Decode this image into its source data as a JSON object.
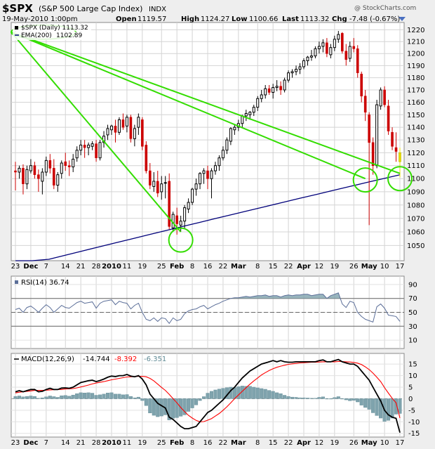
{
  "header": {
    "symbol": "$SPX",
    "name": "(S&P 500 Large Cap Index)",
    "exchange": "INDX",
    "date": "19-May-2010 1:00pm",
    "open_label": "Open",
    "open": "1119.57",
    "high_label": "High",
    "high": "1124.27",
    "low_label": "Low",
    "low": "1100.66",
    "last_label": "Last",
    "last": "1113.32",
    "chg_label": "Chg",
    "chg": "-7.48 (-0.67%)",
    "watermark": "@ StockCharts.com"
  },
  "colors": {
    "up": "#000000",
    "down": "#cc0000",
    "today": "#e8e000",
    "ema": "#00007a",
    "annotation": "#33dd00",
    "rsi": "#5c6f99",
    "macd": "#000000",
    "signal": "#ff0000",
    "histogram": "#7fa3ad",
    "plot_bg": "#ffffff",
    "page_bg": "#eeeeee"
  },
  "chart_data": [
    {
      "type": "candlestick",
      "title": "$SPX (Daily) 1113.32",
      "legend": [
        {
          "name": "EMA(200)",
          "value": "1102.89"
        }
      ],
      "x_labels": [
        "23",
        "Dec",
        "7",
        "14",
        "21",
        "28",
        "2010",
        "11",
        "19",
        "25",
        "Feb",
        "8",
        "16",
        "22",
        "Mar",
        "8",
        "15",
        "22",
        "Apr",
        "12",
        "19",
        "26",
        "May",
        "10",
        "17"
      ],
      "ylim": [
        1040,
        1225
      ],
      "y_ticks": [
        1050,
        1060,
        1070,
        1080,
        1090,
        1100,
        1110,
        1120,
        1130,
        1140,
        1150,
        1160,
        1170,
        1180,
        1190,
        1200,
        1210,
        1220
      ],
      "y_scale": "log",
      "candles": [
        [
          1106,
          1113,
          1091,
          1105
        ],
        [
          1105,
          1110,
          1100,
          1108
        ],
        [
          1108,
          1111,
          1088,
          1096
        ],
        [
          1096,
          1110,
          1092,
          1107
        ],
        [
          1106,
          1115,
          1104,
          1110
        ],
        [
          1110,
          1113,
          1100,
          1103
        ],
        [
          1103,
          1107,
          1090,
          1100
        ],
        [
          1098,
          1108,
          1088,
          1105
        ],
        [
          1105,
          1117,
          1102,
          1114
        ],
        [
          1114,
          1119,
          1104,
          1108
        ],
        [
          1108,
          1115,
          1092,
          1095
        ],
        [
          1095,
          1105,
          1090,
          1103
        ],
        [
          1104,
          1114,
          1100,
          1112
        ],
        [
          1113,
          1120,
          1106,
          1110
        ],
        [
          1110,
          1114,
          1102,
          1109
        ],
        [
          1109,
          1119,
          1105,
          1115
        ],
        [
          1116,
          1125,
          1113,
          1122
        ],
        [
          1122,
          1130,
          1118,
          1126
        ],
        [
          1126,
          1130,
          1116,
          1124
        ],
        [
          1124,
          1128,
          1118,
          1126
        ],
        [
          1125,
          1129,
          1122,
          1127
        ],
        [
          1127,
          1130,
          1113,
          1116
        ],
        [
          1116,
          1130,
          1114,
          1128
        ],
        [
          1128,
          1137,
          1124,
          1133
        ],
        [
          1134,
          1142,
          1130,
          1139
        ],
        [
          1138,
          1142,
          1134,
          1141
        ],
        [
          1141,
          1146,
          1128,
          1136
        ],
        [
          1136,
          1148,
          1134,
          1146
        ],
        [
          1146,
          1151,
          1138,
          1140
        ],
        [
          1141,
          1150,
          1136,
          1148
        ],
        [
          1148,
          1150,
          1128,
          1131
        ],
        [
          1131,
          1142,
          1125,
          1139
        ],
        [
          1140,
          1151,
          1134,
          1148
        ],
        [
          1146,
          1148,
          1122,
          1125
        ],
        [
          1126,
          1129,
          1104,
          1106
        ],
        [
          1106,
          1112,
          1092,
          1095
        ],
        [
          1094,
          1105,
          1090,
          1098
        ],
        [
          1098,
          1106,
          1086,
          1089
        ],
        [
          1090,
          1102,
          1084,
          1096
        ],
        [
          1097,
          1102,
          1085,
          1097
        ],
        [
          1098,
          1104,
          1062,
          1064
        ],
        [
          1063,
          1075,
          1060,
          1073
        ],
        [
          1072,
          1078,
          1058,
          1066
        ],
        [
          1065,
          1072,
          1060,
          1068
        ],
        [
          1068,
          1080,
          1062,
          1078
        ],
        [
          1077,
          1085,
          1074,
          1082
        ],
        [
          1082,
          1093,
          1080,
          1092
        ],
        [
          1092,
          1100,
          1087,
          1096
        ],
        [
          1096,
          1105,
          1092,
          1104
        ],
        [
          1104,
          1108,
          1096,
          1106
        ],
        [
          1106,
          1110,
          1092,
          1100
        ],
        [
          1100,
          1108,
          1085,
          1106
        ],
        [
          1106,
          1113,
          1103,
          1110
        ],
        [
          1110,
          1118,
          1106,
          1116
        ],
        [
          1116,
          1125,
          1114,
          1122
        ],
        [
          1122,
          1132,
          1119,
          1130
        ],
        [
          1129,
          1140,
          1126,
          1139
        ],
        [
          1138,
          1142,
          1134,
          1140
        ],
        [
          1140,
          1146,
          1137,
          1143
        ],
        [
          1143,
          1150,
          1140,
          1149
        ],
        [
          1149,
          1154,
          1145,
          1151
        ],
        [
          1150,
          1153,
          1146,
          1152
        ],
        [
          1152,
          1158,
          1149,
          1156
        ],
        [
          1156,
          1165,
          1153,
          1163
        ],
        [
          1163,
          1170,
          1160,
          1166
        ],
        [
          1166,
          1174,
          1163,
          1171
        ],
        [
          1171,
          1174,
          1166,
          1168
        ],
        [
          1168,
          1175,
          1163,
          1172
        ],
        [
          1172,
          1178,
          1169,
          1173
        ],
        [
          1173,
          1177,
          1166,
          1170
        ],
        [
          1170,
          1180,
          1168,
          1178
        ],
        [
          1178,
          1186,
          1176,
          1184
        ],
        [
          1184,
          1187,
          1180,
          1185
        ],
        [
          1185,
          1190,
          1182,
          1187
        ],
        [
          1187,
          1192,
          1183,
          1189
        ],
        [
          1189,
          1196,
          1187,
          1194
        ],
        [
          1194,
          1198,
          1190,
          1197
        ],
        [
          1197,
          1203,
          1194,
          1198
        ],
        [
          1198,
          1206,
          1196,
          1204
        ],
        [
          1204,
          1210,
          1200,
          1206
        ],
        [
          1206,
          1212,
          1201,
          1209
        ],
        [
          1209,
          1213,
          1197,
          1200
        ],
        [
          1199,
          1208,
          1196,
          1205
        ],
        [
          1205,
          1215,
          1202,
          1212
        ],
        [
          1212,
          1219,
          1209,
          1216
        ],
        [
          1217,
          1218,
          1200,
          1202
        ],
        [
          1202,
          1208,
          1190,
          1195
        ],
        [
          1196,
          1210,
          1193,
          1206
        ],
        [
          1206,
          1213,
          1201,
          1204
        ],
        [
          1204,
          1207,
          1180,
          1184
        ],
        [
          1183,
          1185,
          1160,
          1165
        ],
        [
          1165,
          1170,
          1145,
          1152
        ],
        [
          1150,
          1152,
          1065,
          1128
        ],
        [
          1128,
          1132,
          1103,
          1110
        ],
        [
          1110,
          1162,
          1108,
          1158
        ],
        [
          1157,
          1172,
          1154,
          1170
        ],
        [
          1170,
          1173,
          1156,
          1158
        ],
        [
          1157,
          1162,
          1134,
          1137
        ],
        [
          1136,
          1140,
          1122,
          1125
        ],
        [
          1124,
          1136,
          1113,
          1121
        ],
        [
          1120,
          1124,
          1101,
          1113
        ]
      ],
      "ema200": [
        1034,
        1037,
        1040,
        1043,
        1046,
        1049,
        1052,
        1055,
        1058,
        1061,
        1064,
        1067,
        1070,
        1073,
        1076,
        1079,
        1082,
        1085,
        1088,
        1091,
        1094,
        1097,
        1100,
        1103
      ]
    },
    {
      "type": "line",
      "title": "RSI(14) 36.74",
      "ylim": [
        0,
        100
      ],
      "y_ticks": [
        10,
        30,
        50,
        70,
        90
      ],
      "reference_lines": [
        70,
        50,
        30
      ],
      "values": [
        54,
        56,
        50,
        57,
        59,
        55,
        50,
        56,
        61,
        57,
        50,
        55,
        60,
        57,
        56,
        60,
        64,
        66,
        63,
        64,
        65,
        56,
        63,
        66,
        67,
        68,
        61,
        66,
        64,
        63,
        55,
        60,
        63,
        50,
        40,
        38,
        42,
        37,
        42,
        41,
        34,
        42,
        38,
        40,
        48,
        52,
        54,
        55,
        58,
        60,
        55,
        58,
        61,
        63,
        66,
        68,
        70,
        71,
        71,
        72,
        73,
        72,
        73,
        74,
        74,
        75,
        73,
        74,
        74,
        72,
        74,
        75,
        74,
        75,
        75,
        76,
        76,
        74,
        75,
        76,
        76,
        70,
        74,
        76,
        78,
        62,
        57,
        66,
        64,
        50,
        44,
        40,
        38,
        36,
        58,
        62,
        56,
        46,
        45,
        44,
        37
      ]
    },
    {
      "type": "line",
      "title": "MACD(12,26,9)",
      "legend": [
        {
          "name": "MACD(12,26,9)",
          "value": "-14.744"
        },
        {
          "name": "Signal",
          "value": "-8.392"
        },
        {
          "name": "Histogram",
          "value": "-6.351"
        }
      ],
      "ylim": [
        -16,
        19
      ],
      "y_ticks": [
        -15,
        -10,
        -5,
        0,
        5,
        10,
        15
      ],
      "macd": [
        3,
        3.5,
        3,
        3.5,
        4,
        4,
        3,
        3.2,
        4,
        4.5,
        4,
        4,
        4.6,
        4.7,
        4.5,
        5,
        6,
        7,
        7.4,
        7.8,
        8,
        7.4,
        7.9,
        8.5,
        9.3,
        9.8,
        9.6,
        10,
        10,
        10.5,
        9.8,
        9.5,
        10,
        8.5,
        6,
        2,
        0,
        -2,
        -3,
        -4,
        -8,
        -9,
        -10.5,
        -12,
        -13,
        -13,
        -12.5,
        -12,
        -10,
        -8,
        -6,
        -5,
        -3.5,
        -2,
        -0.5,
        1.5,
        3.5,
        5,
        7,
        9,
        10.5,
        12,
        13,
        14,
        15,
        15.5,
        16,
        16.5,
        16,
        16.5,
        16,
        15.8,
        15.8,
        16,
        16,
        16,
        16,
        16,
        16,
        16.5,
        16.8,
        16,
        16,
        16.5,
        17,
        16,
        15.5,
        15,
        15,
        14,
        12,
        10,
        8,
        5,
        2,
        -1,
        -5,
        -7,
        -8,
        -8.5,
        -14.7
      ],
      "signal": [
        2.5,
        2.8,
        3,
        3.2,
        3.4,
        3.6,
        3.6,
        3.6,
        3.7,
        3.8,
        3.9,
        4,
        4,
        4.2,
        4.3,
        4.4,
        4.7,
        5.1,
        5.5,
        5.9,
        6.4,
        6.8,
        7.1,
        7.4,
        7.8,
        8.2,
        8.5,
        8.8,
        9.1,
        9.4,
        9.5,
        9.6,
        9.7,
        9.7,
        9.5,
        8.8,
        7.7,
        6.3,
        4.9,
        3.6,
        1.9,
        0,
        -1.8,
        -3.8,
        -5.6,
        -7.2,
        -8.4,
        -9.4,
        -10,
        -9.9,
        -9.3,
        -8.6,
        -7.5,
        -6.4,
        -5,
        -3.5,
        -1.8,
        0,
        1.6,
        3.2,
        4.8,
        6.3,
        7.7,
        9,
        10.3,
        11.3,
        12.2,
        13,
        13.6,
        14.1,
        14.5,
        14.9,
        15.1,
        15.3,
        15.5,
        15.6,
        15.7,
        15.8,
        15.8,
        15.9,
        16,
        16,
        16,
        16,
        16.1,
        16.1,
        16,
        15.9,
        15.7,
        15.4,
        14.8,
        13.8,
        12.6,
        11.1,
        9.3,
        7.4,
        4.8,
        2.4,
        0.2,
        -1.8,
        -8.4
      ],
      "histogram": [
        1,
        1.2,
        0.8,
        1,
        1.2,
        1,
        0.2,
        0.4,
        0.8,
        1.2,
        0.9,
        0.6,
        1.3,
        1.4,
        1.1,
        1.6,
        2.2,
        2.6,
        2.5,
        2.6,
        2.4,
        1.5,
        1.7,
        2,
        2.5,
        2.6,
        2,
        2,
        1.7,
        1.8,
        1,
        0.4,
        0.7,
        -0.8,
        -3,
        -6.2,
        -7.2,
        -7.8,
        -7.5,
        -7,
        -9.2,
        -8.5,
        -8.2,
        -7.6,
        -7,
        -5.5,
        -4,
        -2.7,
        -0.8,
        0.9,
        2.4,
        3.2,
        3.8,
        4.2,
        4.5,
        4.8,
        5,
        4.8,
        5.2,
        5.5,
        5.4,
        5.4,
        5,
        4.7,
        4.4,
        4.1,
        3.6,
        3.2,
        2.6,
        2.2,
        1.5,
        1,
        0.7,
        0.6,
        0.4,
        0.4,
        0.3,
        0.2,
        0.2,
        0.6,
        0.8,
        0,
        0,
        0.5,
        0.9,
        -0.1,
        -0.5,
        -0.9,
        -0.7,
        -1.4,
        -2.8,
        -3.8,
        -4.6,
        -6.1,
        -7.3,
        -8.4,
        -9.8,
        -9.4,
        -8.4,
        -6.7,
        -6.4
      ]
    }
  ],
  "annotations": {
    "trend_lines": [
      {
        "from": {
          "bar": -10,
          "value": 1218
        },
        "to": {
          "bar": 43,
          "value": 1060
        }
      },
      {
        "from": {
          "bar": -10,
          "value": 1218
        },
        "to": {
          "bar": 91,
          "value": 1100
        }
      },
      {
        "from": {
          "bar": -10,
          "value": 1218
        },
        "to": {
          "bar": 100,
          "value": 1104
        }
      }
    ],
    "circles": [
      {
        "bar": 43,
        "value": 1054
      },
      {
        "bar": 91,
        "value": 1099
      },
      {
        "bar": 100,
        "value": 1100
      }
    ]
  }
}
